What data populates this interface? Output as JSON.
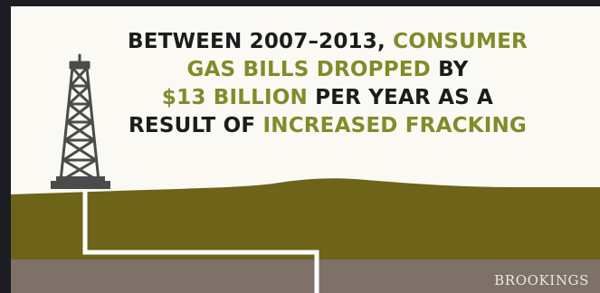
{
  "headline": {
    "line1": {
      "t1": "BETWEEN 2007–2013, ",
      "t2": "CONSUMER"
    },
    "line2": {
      "t1": "GAS BILLS DROPPED",
      "t2": " BY"
    },
    "line3": {
      "t1": "$13 BILLION",
      "t2": " PER YEAR AS A"
    },
    "line4": {
      "t1": "RESULT OF ",
      "t2": "INCREASED FRACKING"
    }
  },
  "brand": "BROOKINGS",
  "colors": {
    "background": "#fbf9f3",
    "highlight": "#7f8c2a",
    "earth": "#6d6319",
    "rock": "#7d7169",
    "text": "#1c1c1c",
    "derrick": "#4b4b4b"
  },
  "icons": [
    "drilling-rig-icon"
  ]
}
